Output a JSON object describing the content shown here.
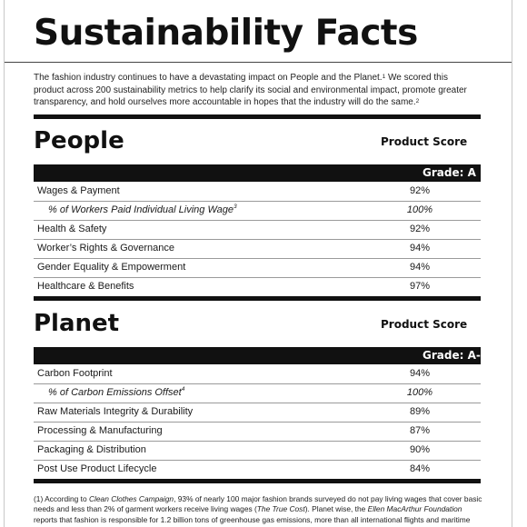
{
  "title": "Sustainability Facts",
  "intro": {
    "text": "The fashion industry continues to have a devastating impact on People and the Planet.",
    "sup1": "1",
    "text2": " We scored this product across 200 sustainability metrics to help clarify its social and environmental impact, promote greater transparency, and hold ourselves more accountable in hopes that the industry will do the same.",
    "sup2": "2"
  },
  "people": {
    "heading": "People",
    "score_label": "Product Score",
    "grade": "Grade: A",
    "rows": [
      {
        "label": "Wages & Payment",
        "value": "92%",
        "sub": false,
        "sup": ""
      },
      {
        "label": "% of Workers Paid Individual Living Wage",
        "value": "100%",
        "sub": true,
        "sup": "3"
      },
      {
        "label": "Health & Safety",
        "value": "92%",
        "sub": false,
        "sup": ""
      },
      {
        "label": "Worker’s Rights & Governance",
        "value": "94%",
        "sub": false,
        "sup": ""
      },
      {
        "label": "Gender Equality & Empowerment",
        "value": "94%",
        "sub": false,
        "sup": ""
      },
      {
        "label": "Healthcare & Benefits",
        "value": "97%",
        "sub": false,
        "sup": ""
      }
    ]
  },
  "planet": {
    "heading": "Planet",
    "score_label": "Product Score",
    "grade": "Grade: A-",
    "rows": [
      {
        "label": "Carbon Footprint",
        "value": "94%",
        "sub": false,
        "sup": ""
      },
      {
        "label": "% of Carbon Emissions Offset",
        "value": "100%",
        "sub": true,
        "sup": "4"
      },
      {
        "label": "Raw Materials Integrity & Durability",
        "value": "89%",
        "sub": false,
        "sup": ""
      },
      {
        "label": "Processing & Manufacturing",
        "value": "87%",
        "sub": false,
        "sup": ""
      },
      {
        "label": "Packaging & Distribution",
        "value": "90%",
        "sub": false,
        "sup": ""
      },
      {
        "label": "Post Use Product Lifecycle",
        "value": "84%",
        "sub": false,
        "sup": ""
      }
    ]
  },
  "footnote": {
    "p1": "(1) According to ",
    "src1": "Clean Clothes Campaign",
    "p2": ", 93% of nearly 100 major fashion brands surveyed do not pay living wages that cover basic needs and less than 2% of garment workers receive living wages (",
    "src2": "The True Cost",
    "p3": "). Planet wise, the ",
    "src3": "Ellen MacArthur Foundation",
    "p4": " reports that fashion is responsible for 1.2 billion tons of greenhouse gas emissions, more than all international flights and maritime shipping combined."
  },
  "colors": {
    "ink": "#111111",
    "rule": "#9a9a9a",
    "background": "#ffffff"
  }
}
